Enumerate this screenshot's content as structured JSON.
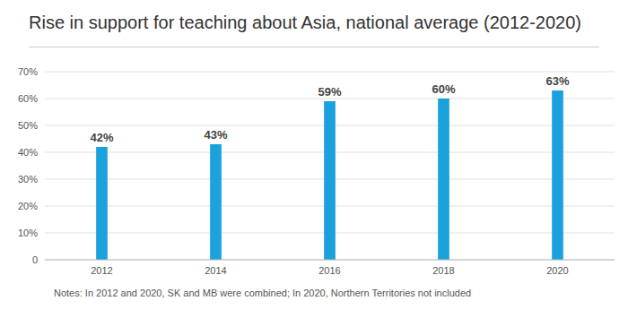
{
  "chart_data": {
    "type": "bar",
    "title": "Rise in support for teaching about Asia, national average (2012-2020)",
    "categories": [
      "2012",
      "2014",
      "2016",
      "2018",
      "2020"
    ],
    "values": [
      42,
      43,
      59,
      60,
      63
    ],
    "value_labels": [
      "42%",
      "43%",
      "59%",
      "60%",
      "63%"
    ],
    "color": "#1ba1dc",
    "ylim": [
      0,
      70
    ],
    "yticks": [
      0,
      {
        "value": 10,
        "label": "10%"
      },
      {
        "value": 20,
        "label": "20%"
      },
      {
        "value": 30,
        "label": "30%"
      },
      {
        "value": 40,
        "label": "40%"
      },
      {
        "value": 50,
        "label": "50%"
      },
      {
        "value": 60,
        "label": "60%"
      },
      {
        "value": 70,
        "label": "70%"
      }
    ],
    "grid": true,
    "data_labels": true,
    "annotation": "Notes: In 2012 and 2020, SK and MB were combined; In 2020, Northern Territories not included"
  }
}
